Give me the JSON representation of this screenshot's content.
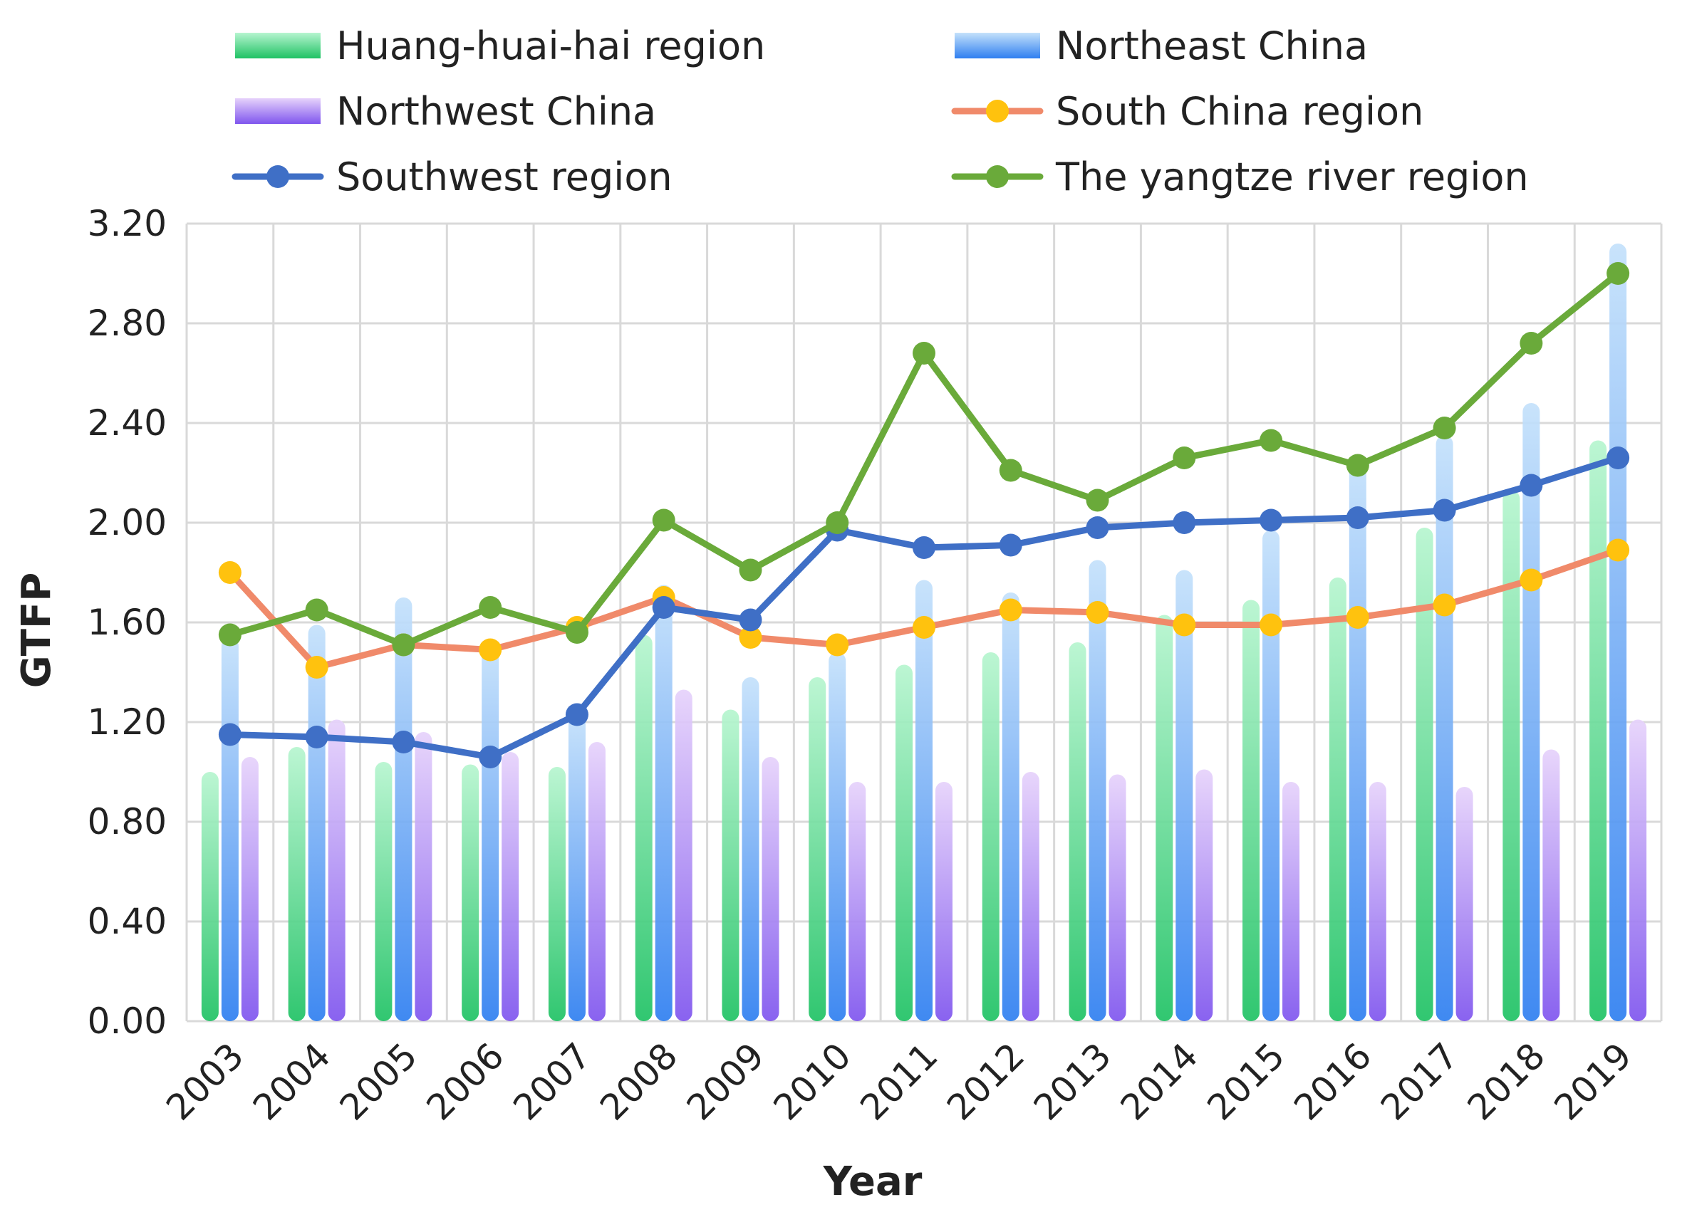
{
  "chart_data": {
    "type": "bar",
    "title": "",
    "xlabel": "Year",
    "ylabel": "GTFP",
    "ylim": [
      0,
      3.2
    ],
    "yticks": [
      "0.00",
      "0.40",
      "0.80",
      "1.20",
      "1.60",
      "2.00",
      "2.40",
      "2.80",
      "3.20"
    ],
    "grid": true,
    "legend_position": "top",
    "categories": [
      "2003",
      "2004",
      "2005",
      "2006",
      "2007",
      "2008",
      "2009",
      "2010",
      "2011",
      "2012",
      "2013",
      "2014",
      "2015",
      "2016",
      "2017",
      "2018",
      "2019"
    ],
    "series": [
      {
        "name": "Huang-huai-hai region",
        "kind": "bar",
        "color": "#2ecc71",
        "values": [
          1.0,
          1.1,
          1.04,
          1.03,
          1.02,
          1.55,
          1.25,
          1.38,
          1.43,
          1.48,
          1.52,
          1.63,
          1.69,
          1.78,
          1.98,
          2.13,
          2.33
        ]
      },
      {
        "name": "Northeast China",
        "kind": "bar",
        "color": "#3b8df0",
        "values": [
          1.54,
          1.59,
          1.7,
          1.51,
          1.24,
          1.75,
          1.38,
          1.48,
          1.77,
          1.72,
          1.85,
          1.81,
          1.97,
          2.25,
          2.35,
          2.48,
          3.12
        ]
      },
      {
        "name": "Northwest China",
        "kind": "bar",
        "color": "#8b5cf0",
        "values": [
          1.06,
          1.21,
          1.16,
          1.08,
          1.12,
          1.33,
          1.06,
          0.96,
          0.96,
          1.0,
          0.99,
          1.01,
          0.96,
          0.96,
          0.94,
          1.09,
          1.21
        ]
      },
      {
        "name": "South China region",
        "kind": "line",
        "color": "#f08a6a",
        "marker_color": "#ffc20e",
        "values": [
          1.8,
          1.42,
          1.51,
          1.49,
          1.58,
          1.7,
          1.54,
          1.51,
          1.58,
          1.65,
          1.64,
          1.59,
          1.59,
          1.62,
          1.67,
          1.77,
          1.89
        ]
      },
      {
        "name": "Southwest region",
        "kind": "line",
        "color": "#3f6fc6",
        "marker_color": "#3f6fc6",
        "values": [
          1.15,
          1.14,
          1.12,
          1.06,
          1.23,
          1.66,
          1.61,
          1.97,
          1.9,
          1.91,
          1.98,
          2.0,
          2.01,
          2.02,
          2.05,
          2.15,
          2.26
        ]
      },
      {
        "name": "The yangtze river region",
        "kind": "line",
        "color": "#6aaa3a",
        "marker_color": "#6aaa3a",
        "values": [
          1.55,
          1.65,
          1.51,
          1.66,
          1.56,
          2.01,
          1.81,
          2.0,
          2.68,
          2.21,
          2.09,
          2.26,
          2.33,
          2.23,
          2.38,
          2.72,
          3.0
        ]
      }
    ]
  }
}
